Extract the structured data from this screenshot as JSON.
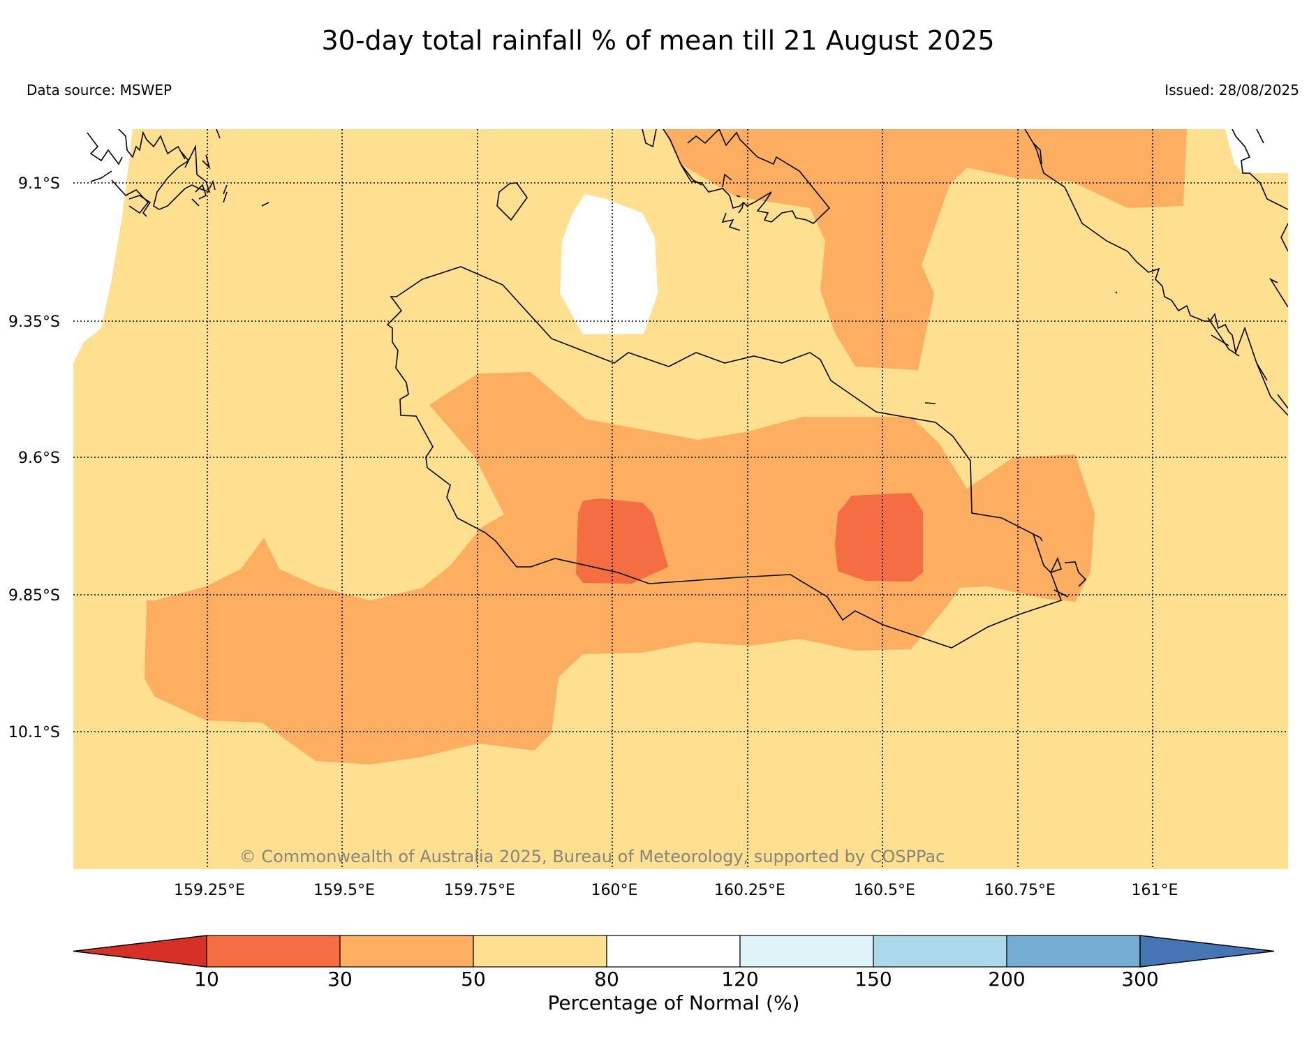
{
  "title": "30-day total rainfall % of mean till 21 August 2025",
  "data_source": "Data source: MSWEP",
  "issued": "Issued: 28/08/2025",
  "copyright": "© Commonwealth of Australia 2025, Bureau of Meteorology, supported by COSPPac",
  "map": {
    "lon_labels": [
      "159.25°E",
      "159.5°E",
      "159.75°E",
      "160°E",
      "160.25°E",
      "160.5°E",
      "160.75°E",
      "161°E"
    ],
    "lat_labels": [
      "9.1°S",
      "9.35°S",
      "9.6°S",
      "9.85°S",
      "10.1°S"
    ]
  },
  "colorbar": {
    "label": "Percentage of Normal (%)",
    "ticks": [
      "10",
      "30",
      "50",
      "80",
      "120",
      "150",
      "200",
      "300"
    ],
    "colors": [
      "#d73027",
      "#f46d43",
      "#fdae61",
      "#fee090",
      "#ffffff",
      "#e0f3f8",
      "#abd9e9",
      "#74add1",
      "#4575b4"
    ]
  }
}
